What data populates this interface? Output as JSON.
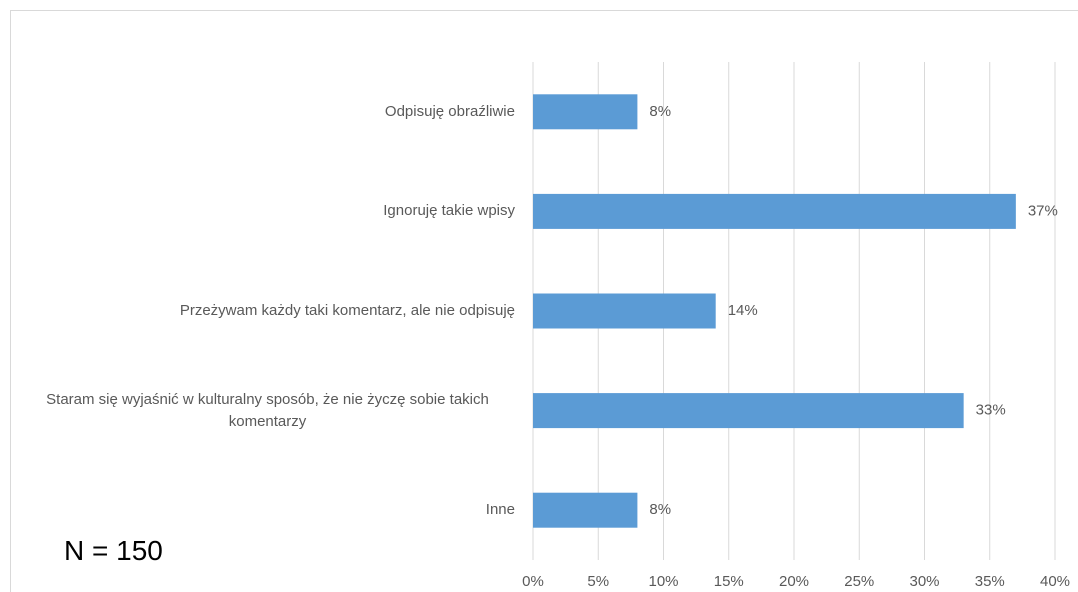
{
  "chart_data": {
    "type": "barh",
    "categories": [
      "Odpisuję obraźliwie",
      "Ignoruję takie wpisy",
      "Przeżywam każdy taki komentarz, ale nie odpisuję",
      "Staram się wyjaśnić w kulturalny sposób, że nie życzę sobie takich komentarzy",
      "Inne"
    ],
    "values": [
      8,
      37,
      14,
      33,
      8
    ],
    "value_labels": [
      "8%",
      "37%",
      "14%",
      "33%",
      "8%"
    ],
    "color": "#5b9bd5",
    "xlim": [
      0,
      40
    ],
    "xticks": [
      {
        "value": 0,
        "label": "0%"
      },
      {
        "value": 5,
        "label": "5%"
      },
      {
        "value": 10,
        "label": "10%"
      },
      {
        "value": 15,
        "label": "15%"
      },
      {
        "value": 20,
        "label": "20%"
      },
      {
        "value": 25,
        "label": "25%"
      },
      {
        "value": 30,
        "label": "30%"
      },
      {
        "value": 35,
        "label": "35%"
      },
      {
        "value": 40,
        "label": "40%"
      }
    ],
    "grid": true,
    "annotation": "N = 150"
  }
}
